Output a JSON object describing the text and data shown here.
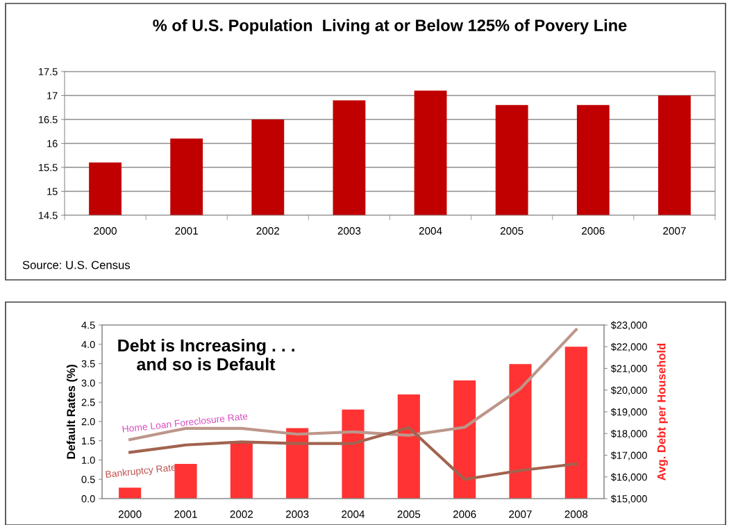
{
  "chart_data": [
    {
      "type": "bar",
      "title": "% of U.S. Population  Living at or Below 125% of Povery Line",
      "categories": [
        "2000",
        "2001",
        "2002",
        "2003",
        "2004",
        "2005",
        "2006",
        "2007"
      ],
      "series": [
        {
          "color": "#c00000",
          "values": [
            15.6,
            16.1,
            16.5,
            16.9,
            17.1,
            16.8,
            16.8,
            17.0
          ]
        }
      ],
      "ylim": [
        14.5,
        17.5
      ],
      "yticks": [
        14.5,
        15,
        15.5,
        16,
        16.5,
        17,
        17.5
      ],
      "grid": "y",
      "legend": false,
      "annotations": [
        "Source: U.S. Census"
      ]
    },
    {
      "type": "bar",
      "ylabel": "Default Rates (%)",
      "y2label": "Avg. Debt per Household",
      "categories": [
        "2000",
        "2001",
        "2002",
        "2003",
        "2004",
        "2005",
        "2006",
        "2007",
        "2008"
      ],
      "series": [
        {
          "type": "bar",
          "axis": "y2",
          "color": "#ff3333",
          "values": [
            15500,
            16600,
            17650,
            18250,
            19100,
            19800,
            20450,
            21200,
            22000
          ]
        },
        {
          "type": "line",
          "name": "Home Loan Foreclosure Rate",
          "color": "#bd968a",
          "values": [
            1.53,
            1.82,
            1.82,
            1.67,
            1.73,
            1.64,
            1.85,
            2.85,
            4.38
          ]
        },
        {
          "type": "line",
          "name": "Bankruptcy Rate",
          "color": "#a2634f",
          "values": [
            1.2,
            1.39,
            1.47,
            1.43,
            1.43,
            1.84,
            0.5,
            0.73,
            0.9
          ]
        }
      ],
      "ylim": [
        0,
        4.5
      ],
      "yticks": [
        {
          "value": 0,
          "label": "0.0"
        },
        {
          "value": 0.5,
          "label": "0.5"
        },
        {
          "value": 1,
          "label": "1.0"
        },
        {
          "value": 1.5,
          "label": "1.5"
        },
        {
          "value": 2,
          "label": "2.0"
        },
        {
          "value": 2.5,
          "label": "2.5"
        },
        {
          "value": 3,
          "label": "3.0"
        },
        {
          "value": 3.5,
          "label": "3.5"
        },
        {
          "value": 4,
          "label": "4.0"
        },
        {
          "value": 4.5,
          "label": "4.5"
        }
      ],
      "y2lim": [
        15000,
        23000
      ],
      "y2ticks": [
        {
          "value": 15000,
          "label": "$15,000"
        },
        {
          "value": 16000,
          "label": "$16,000"
        },
        {
          "value": 17000,
          "label": "$17,000"
        },
        {
          "value": 18000,
          "label": "$18,000"
        },
        {
          "value": 19000,
          "label": "$19,000"
        },
        {
          "value": 20000,
          "label": "$20,000"
        },
        {
          "value": 21000,
          "label": "$21,000"
        },
        {
          "value": 22000,
          "label": "$22,000"
        },
        {
          "value": 23000,
          "label": "$23,000"
        }
      ],
      "grid": false,
      "legend": false,
      "marker": "none",
      "line_style": "solid",
      "annotations": [
        "Debt is Increasing . . .\n    and so is Default"
      ]
    }
  ]
}
